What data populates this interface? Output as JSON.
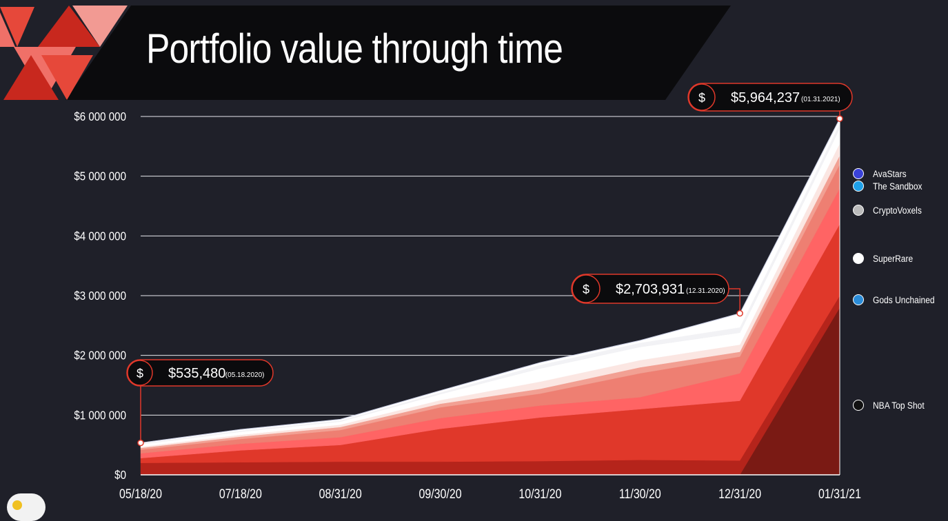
{
  "title": "Portfolio value through time",
  "colors": {
    "background": "#1f2029",
    "title_band": "#0b0b0d",
    "accent": "#e0382a",
    "gridline": "#e9e9ee",
    "callout_border": "#e0382a"
  },
  "chart_data": {
    "type": "area",
    "stacked": true,
    "x": [
      "05/18/20",
      "07/18/20",
      "08/31/20",
      "09/30/20",
      "10/31/20",
      "11/30/20",
      "12/31/20",
      "01/31/21"
    ],
    "x_tick_labels": [
      "05/18/20",
      "07/18/20",
      "08/31/20",
      "09/30/20",
      "10/31/20",
      "11/30/20",
      "12/31/20",
      "01/31/21"
    ],
    "y_tick_labels": [
      "$0",
      "$1 000 000",
      "$2 000 000",
      "$3 000 000",
      "$4 000 000",
      "$5 000 000",
      "$6 000 000"
    ],
    "ylim": [
      0,
      6000000
    ],
    "grid": true,
    "legend_position": "right",
    "series": [
      {
        "name": "NBA Top Shot",
        "color": "#7a1a14",
        "icon": "nba-top-shot-icon",
        "values": [
          0,
          0,
          0,
          0,
          0,
          0,
          0,
          2800000
        ]
      },
      {
        "color": "#b5241b",
        "values": [
          200000,
          210000,
          220000,
          220000,
          230000,
          250000,
          240000,
          200000
        ]
      },
      {
        "color": "#e0382a",
        "values": [
          80000,
          200000,
          280000,
          550000,
          730000,
          850000,
          1000000,
          1200000
        ]
      },
      {
        "name": "Gods Unchained",
        "color": "#ff6464",
        "values": [
          80000,
          110000,
          130000,
          180000,
          200000,
          200000,
          460000,
          600000
        ]
      },
      {
        "color": "#ee7f72",
        "values": [
          60000,
          80000,
          120000,
          180000,
          200000,
          400000,
          280000,
          400000
        ]
      },
      {
        "color": "#f2a093",
        "values": [
          30000,
          40000,
          50000,
          60000,
          80000,
          100000,
          80000,
          150000
        ]
      },
      {
        "name": "SuperRare",
        "color": "#fbe6e2",
        "values": [
          20000,
          30000,
          40000,
          60000,
          120000,
          120000,
          120000,
          200000
        ]
      },
      {
        "name": "CryptoVoxels",
        "color": "#ffffff",
        "values": [
          40000,
          50000,
          50000,
          100000,
          220000,
          220000,
          200000,
          250000
        ]
      },
      {
        "name": "The Sandbox",
        "color": "#f2f2f5",
        "values": [
          15000,
          20000,
          20000,
          30000,
          60000,
          70000,
          90000,
          84237
        ]
      },
      {
        "name": "AvaStars",
        "color": "#ffffff",
        "values": [
          10480,
          20000,
          20000,
          30000,
          40000,
          40000,
          233931,
          80000
        ]
      }
    ],
    "legend": [
      {
        "name": "AvaStars",
        "icon": "avastars-icon"
      },
      {
        "name": "The Sandbox",
        "icon": "sandbox-icon"
      },
      {
        "name": "CryptoVoxels",
        "icon": "cryptovoxels-icon"
      },
      {
        "name": "SuperRare",
        "icon": "superrare-icon"
      },
      {
        "name": "Gods Unchained",
        "icon": "gods-unchained-icon"
      },
      {
        "name": "NBA Top Shot",
        "icon": "nba-top-shot-icon"
      }
    ],
    "annotations": [
      {
        "x": "05/18/20",
        "value_label": "$535,480",
        "date_label": "(05.18.2020)",
        "y": 535480
      },
      {
        "x": "12/31/20",
        "value_label": "$2,703,931",
        "date_label": "(12.31.2020)",
        "y": 2703931
      },
      {
        "x": "01/31/21",
        "value_label": "$5,964,237",
        "date_label": "(01.31.2021)",
        "y": 5964237
      }
    ]
  }
}
